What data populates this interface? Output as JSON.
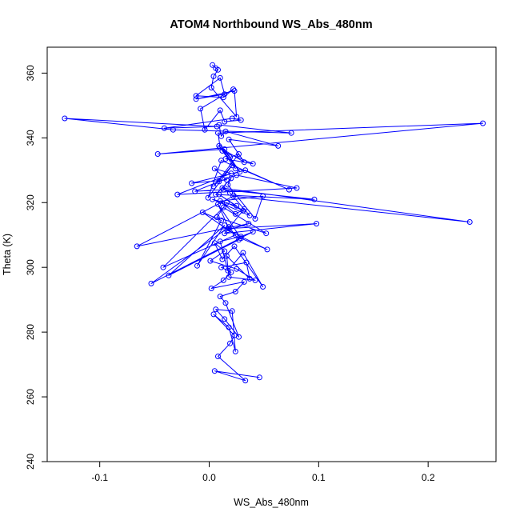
{
  "chart_data": {
    "type": "line",
    "title": "ATOM4 Northbound WS_Abs_480nm",
    "xlabel": "WS_Abs_480nm",
    "ylabel": "Theta (K)",
    "xlim": [
      -0.148,
      0.262
    ],
    "ylim": [
      240,
      368
    ],
    "xticks": [
      -0.1,
      0.0,
      0.1,
      0.2
    ],
    "xtick_labels": [
      "-0.1",
      "0.0",
      "0.1",
      "0.2"
    ],
    "yticks": [
      240,
      260,
      280,
      300,
      320,
      340,
      360
    ],
    "ytick_labels": [
      "240",
      "260",
      "280",
      "300",
      "320",
      "340",
      "360"
    ],
    "grid": false,
    "legend": "none",
    "color": "#0000ff",
    "series": [
      {
        "markers": "circle",
        "x": [
          0.046,
          0.005,
          0.033,
          0.008,
          0.019,
          0.023,
          0.004,
          0.018,
          0.024,
          0.021,
          0.006,
          0.014,
          0.027,
          0.015,
          0.01,
          0.024,
          0.032,
          0.002,
          0.013,
          0.02,
          0.011,
          0.034,
          0.037,
          0.016,
          0.018,
          0.042,
          0.025,
          0.001,
          0.014,
          0.005,
          0.012,
          0.023,
          0.049,
          0.031,
          0.017,
          0.01,
          0.029,
          0.04,
          -0.053,
          0.018,
          0.027,
          -0.037,
          0.014,
          -0.011,
          0.011,
          -0.006,
          0.024,
          -0.042,
          0.013,
          0.052,
          0.007,
          0.016,
          0.031,
          0.009,
          0.025,
          0.003,
          0.037,
          0.019,
          0.012,
          0.238,
          0.022,
          -0.066,
          0.036,
          0.017,
          0.053,
          0.029,
          0.008,
          0.018,
          0.098,
          0.014,
          0.032,
          0.024,
          0.01,
          0.049,
          0.042,
          0.017,
          0.02,
          0.006,
          0.096,
          0.013,
          -0.013,
          0.009,
          0.025,
          0.08,
          -0.029,
          0.02,
          0.005,
          0.016,
          -0.016,
          0.033,
          0.073,
          0.011,
          -0.001,
          0.021,
          0.004,
          0.027,
          0.015,
          0.04,
          0.012,
          0.024,
          0.019,
          0.009,
          0.028,
          0.014,
          -0.047,
          0.25,
          0.008,
          0.01,
          0.032,
          0.018,
          0.063,
          0.015,
          0.011,
          0.009,
          0.075,
          -0.033,
          -0.132,
          0.007,
          -0.041,
          0.021,
          0.029,
          0.014,
          0.01,
          -0.004,
          -0.008,
          0.022,
          0.013,
          -0.012,
          0.01,
          0.014,
          -0.012,
          0.023,
          0.025,
          0.002,
          0.004,
          0.008,
          0.003,
          0.006
        ],
        "y": [
          266.0,
          268.0,
          265.0,
          272.5,
          276.5,
          279.0,
          285.5,
          281.5,
          274.0,
          286.5,
          287.0,
          284.0,
          278.5,
          289.0,
          291.0,
          292.5,
          295.5,
          293.5,
          296.0,
          298.5,
          300.0,
          301.5,
          296.5,
          303.5,
          297.0,
          296.0,
          299.5,
          302.0,
          305.0,
          307.5,
          302.5,
          306.5,
          294.0,
          304.5,
          299.0,
          308.0,
          309.5,
          311.0,
          295.0,
          312.5,
          308.5,
          297.5,
          313.0,
          300.5,
          314.5,
          317.0,
          310.0,
          300.0,
          318.5,
          310.5,
          315.5,
          320.0,
          317.5,
          322.5,
          319.0,
          321.0,
          316.0,
          323.0,
          324.5,
          314.0,
          322.0,
          306.5,
          313.5,
          311.5,
          305.5,
          309.0,
          319.5,
          312.0,
          313.5,
          310.5,
          318.0,
          316.5,
          320.5,
          322.0,
          315.0,
          325.5,
          327.5,
          322.5,
          321.0,
          324.0,
          323.5,
          326.5,
          328.5,
          324.5,
          322.5,
          329.0,
          330.5,
          327.0,
          326.0,
          330.0,
          324.0,
          333.0,
          321.5,
          331.5,
          325.0,
          335.0,
          333.5,
          332.0,
          336.0,
          330.5,
          334.0,
          337.5,
          329.5,
          336.5,
          335.0,
          344.5,
          341.5,
          337.0,
          332.5,
          339.5,
          337.5,
          342.0,
          340.5,
          344.0,
          341.5,
          342.5,
          346.0,
          343.5,
          343.0,
          346.0,
          345.5,
          345.0,
          348.5,
          342.5,
          349.0,
          355.0,
          352.5,
          353.0,
          358.5,
          353.5,
          352.0,
          354.5,
          346.5,
          355.5,
          359.0,
          361.0,
          362.5,
          361.5
        ]
      }
    ]
  }
}
